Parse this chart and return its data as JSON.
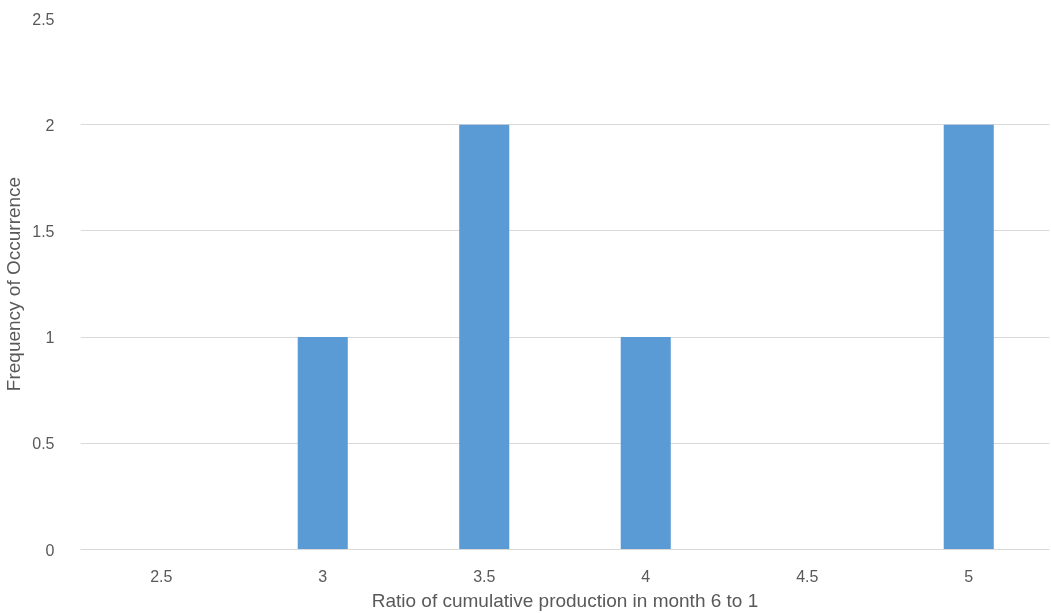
{
  "chart_data": {
    "type": "bar",
    "xlabel": "Ratio of cumulative production in month 6 to 1",
    "ylabel": "Frequency of Occurrence",
    "categories": [
      "2.5",
      "3",
      "3.5",
      "4",
      "4.5",
      "5"
    ],
    "values": [
      0,
      1,
      2,
      1,
      0,
      2
    ],
    "color": "#5b9bd5",
    "ylim": [
      0,
      2.5
    ],
    "yticks": [
      0,
      0.5,
      1,
      1.5,
      2,
      2.5
    ],
    "grid": "y"
  }
}
